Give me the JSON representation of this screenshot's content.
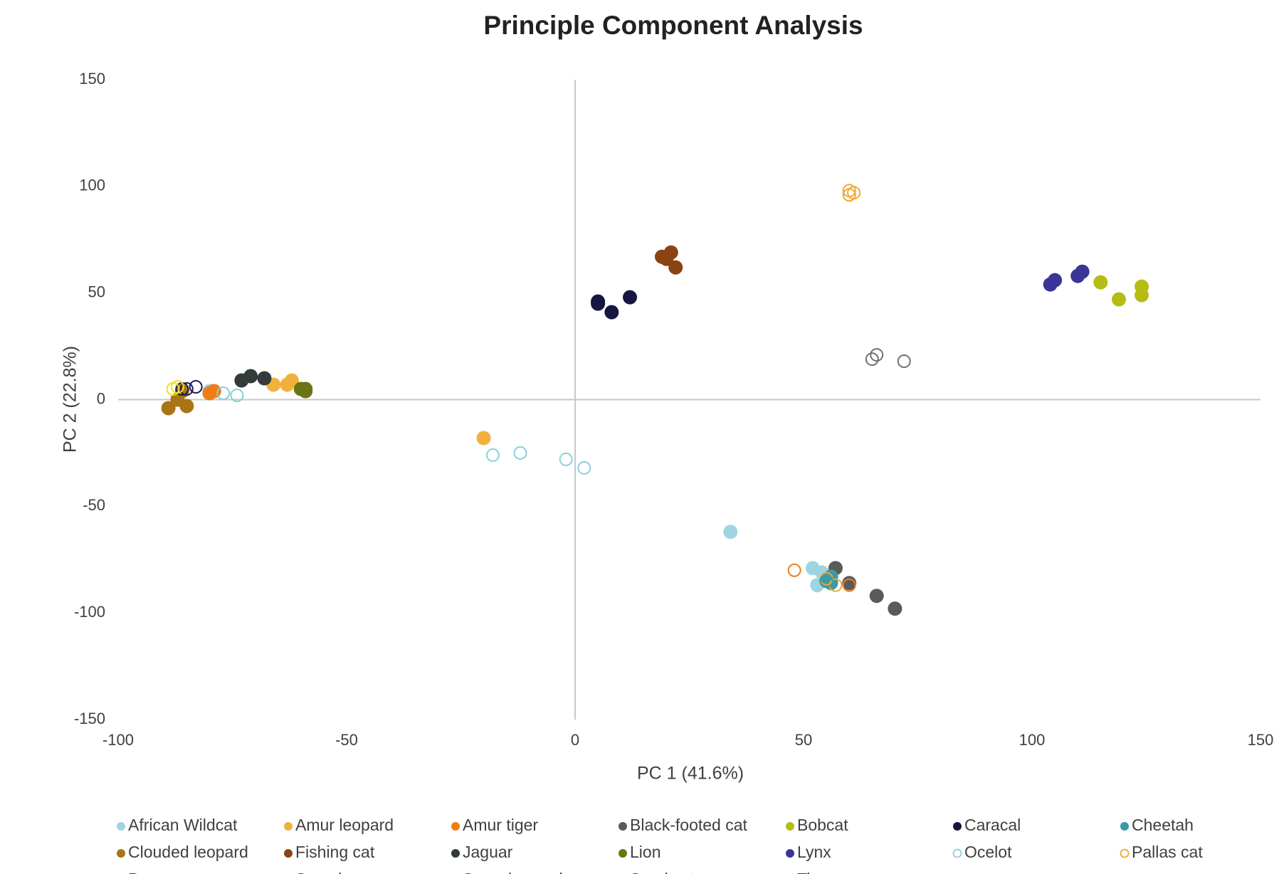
{
  "chart_data": {
    "type": "scatter",
    "title": "Principle Component Analysis",
    "x_label": "PC 1 (41.6%)",
    "y_label": "PC 2 (22.8%)",
    "xlim": [
      -100,
      150
    ],
    "ylim": [
      -150,
      150
    ],
    "xticks": [
      -100,
      -50,
      0,
      50,
      100,
      150
    ],
    "yticks": [
      -150,
      -100,
      -50,
      0,
      50,
      100,
      150
    ],
    "series": [
      {
        "name": "African Wildcat",
        "color": "#9fd5e0",
        "filled": true,
        "x": [
          -80,
          34,
          52,
          54,
          53,
          56
        ],
        "values": [
          4,
          -62,
          -79,
          -81,
          -87,
          -84
        ]
      },
      {
        "name": "Amur leopard",
        "color": "#f0b23c",
        "filled": true,
        "x": [
          -66,
          -63,
          -62,
          -20
        ],
        "values": [
          7,
          7,
          9,
          -18
        ]
      },
      {
        "name": "Amur tiger",
        "color": "#ee7d16",
        "filled": true,
        "x": [
          -80,
          -79
        ],
        "values": [
          3,
          4
        ]
      },
      {
        "name": "Black-footed cat",
        "color": "#5a5a5a",
        "filled": true,
        "x": [
          57,
          60,
          66,
          70
        ],
        "values": [
          -79,
          -86,
          -92,
          -98
        ]
      },
      {
        "name": "Bobcat",
        "color": "#b5bd14",
        "filled": true,
        "x": [
          115,
          119,
          124,
          124
        ],
        "values": [
          55,
          47,
          53,
          49
        ]
      },
      {
        "name": "Caracal",
        "color": "#161640",
        "filled": true,
        "x": [
          5,
          5,
          8,
          12
        ],
        "values": [
          46,
          45,
          41,
          48
        ]
      },
      {
        "name": "Cheetah",
        "color": "#3a9aa3",
        "filled": true,
        "x": [
          55,
          56,
          56
        ],
        "values": [
          -85,
          -83,
          -86
        ]
      },
      {
        "name": "Clouded leopard",
        "color": "#a87414",
        "filled": true,
        "x": [
          -89,
          -87,
          -85,
          -86
        ],
        "values": [
          -4,
          0,
          -3,
          4
        ]
      },
      {
        "name": "Fishing cat",
        "color": "#8a4412",
        "filled": true,
        "x": [
          19,
          21,
          22,
          20
        ],
        "values": [
          67,
          69,
          62,
          66
        ]
      },
      {
        "name": "Jaguar",
        "color": "#333b3b",
        "filled": true,
        "x": [
          -73,
          -71,
          -68
        ],
        "values": [
          9,
          11,
          10
        ]
      },
      {
        "name": "Lion",
        "color": "#6b7414",
        "filled": true,
        "x": [
          -59,
          -59,
          -60
        ],
        "values": [
          5,
          4,
          5
        ]
      },
      {
        "name": "Lynx",
        "color": "#3a3596",
        "filled": true,
        "x": [
          104,
          105,
          110,
          111
        ],
        "values": [
          54,
          56,
          58,
          60
        ]
      },
      {
        "name": "Ocelot",
        "color": "#8acfdc",
        "filled": false,
        "x": [
          -18,
          -12,
          -2,
          2,
          -74,
          -77
        ],
        "values": [
          -26,
          -25,
          -28,
          -32,
          2,
          3
        ]
      },
      {
        "name": "Pallas cat",
        "color": "#f0a830",
        "filled": false,
        "x": [
          60,
          60,
          61,
          55,
          57
        ],
        "values": [
          96,
          98,
          97,
          -84,
          -87
        ]
      },
      {
        "name": "Puma",
        "color": "#707070",
        "filled": false,
        "x": [
          65,
          66,
          72
        ],
        "values": [
          19,
          21,
          18
        ]
      },
      {
        "name": "Serval",
        "color": "#1f1f4f",
        "filled": false,
        "x": [
          -85,
          -83,
          -86
        ],
        "values": [
          5,
          6,
          5
        ]
      },
      {
        "name": "Snow leopard",
        "color": "#f0e020",
        "filled": false,
        "x": [
          -88,
          -87
        ],
        "values": [
          5,
          6
        ]
      },
      {
        "name": "Sand cat",
        "color": "#3a9aa3",
        "filled": false,
        "x": [
          55
        ],
        "values": [
          -85
        ]
      },
      {
        "name": "Tiger",
        "color": "#ee7d16",
        "filled": false,
        "x": [
          48,
          60
        ],
        "values": [
          -80,
          -87
        ]
      }
    ]
  }
}
